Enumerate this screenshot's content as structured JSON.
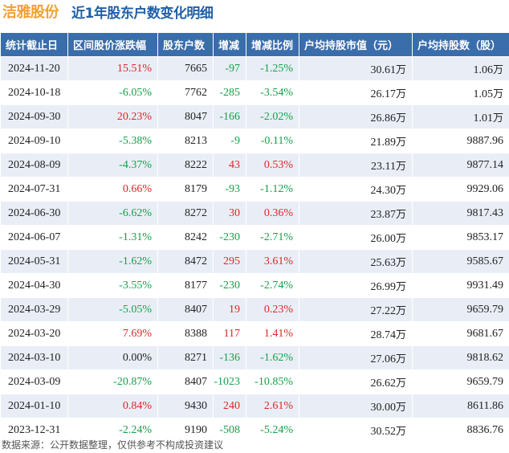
{
  "header": {
    "company": "洁雅股份",
    "subtitle": "近1年股东户数变化明细"
  },
  "table": {
    "columns": [
      "统计截止日",
      "区间股价涨跌幅",
      "股东户数",
      "增减",
      "增减比例",
      "户均持股市值（元）",
      "户均持股数（股）"
    ],
    "rows": [
      {
        "date": "2024-11-20",
        "price_change": "15.51%",
        "holders": "7665",
        "change": "-97",
        "change_ratio": "-1.25%",
        "avg_value": "30.61",
        "avg_value_unit": "万",
        "avg_shares": "1.06",
        "avg_shares_unit": "万",
        "pc_dir": "up",
        "ch_dir": "down"
      },
      {
        "date": "2024-10-18",
        "price_change": "-6.05%",
        "holders": "7762",
        "change": "-285",
        "change_ratio": "-3.54%",
        "avg_value": "26.17",
        "avg_value_unit": "万",
        "avg_shares": "1.05",
        "avg_shares_unit": "万",
        "pc_dir": "down",
        "ch_dir": "down"
      },
      {
        "date": "2024-09-30",
        "price_change": "20.23%",
        "holders": "8047",
        "change": "-166",
        "change_ratio": "-2.02%",
        "avg_value": "26.86",
        "avg_value_unit": "万",
        "avg_shares": "1.01",
        "avg_shares_unit": "万",
        "pc_dir": "up",
        "ch_dir": "down"
      },
      {
        "date": "2024-09-10",
        "price_change": "-5.38%",
        "holders": "8213",
        "change": "-9",
        "change_ratio": "-0.11%",
        "avg_value": "21.89",
        "avg_value_unit": "万",
        "avg_shares": "9887.96",
        "avg_shares_unit": "",
        "pc_dir": "down",
        "ch_dir": "down"
      },
      {
        "date": "2024-08-09",
        "price_change": "-4.37%",
        "holders": "8222",
        "change": "43",
        "change_ratio": "0.53%",
        "avg_value": "23.11",
        "avg_value_unit": "万",
        "avg_shares": "9877.14",
        "avg_shares_unit": "",
        "pc_dir": "down",
        "ch_dir": "up"
      },
      {
        "date": "2024-07-31",
        "price_change": "0.66%",
        "holders": "8179",
        "change": "-93",
        "change_ratio": "-1.12%",
        "avg_value": "24.30",
        "avg_value_unit": "万",
        "avg_shares": "9929.06",
        "avg_shares_unit": "",
        "pc_dir": "up",
        "ch_dir": "down"
      },
      {
        "date": "2024-06-30",
        "price_change": "-6.62%",
        "holders": "8272",
        "change": "30",
        "change_ratio": "0.36%",
        "avg_value": "23.87",
        "avg_value_unit": "万",
        "avg_shares": "9817.43",
        "avg_shares_unit": "",
        "pc_dir": "down",
        "ch_dir": "up"
      },
      {
        "date": "2024-06-07",
        "price_change": "-1.31%",
        "holders": "8242",
        "change": "-230",
        "change_ratio": "-2.71%",
        "avg_value": "26.00",
        "avg_value_unit": "万",
        "avg_shares": "9853.17",
        "avg_shares_unit": "",
        "pc_dir": "down",
        "ch_dir": "down"
      },
      {
        "date": "2024-05-31",
        "price_change": "-1.62%",
        "holders": "8472",
        "change": "295",
        "change_ratio": "3.61%",
        "avg_value": "25.63",
        "avg_value_unit": "万",
        "avg_shares": "9585.67",
        "avg_shares_unit": "",
        "pc_dir": "down",
        "ch_dir": "up"
      },
      {
        "date": "2024-04-30",
        "price_change": "-3.55%",
        "holders": "8177",
        "change": "-230",
        "change_ratio": "-2.74%",
        "avg_value": "26.99",
        "avg_value_unit": "万",
        "avg_shares": "9931.49",
        "avg_shares_unit": "",
        "pc_dir": "down",
        "ch_dir": "down"
      },
      {
        "date": "2024-03-29",
        "price_change": "-5.05%",
        "holders": "8407",
        "change": "19",
        "change_ratio": "0.23%",
        "avg_value": "27.22",
        "avg_value_unit": "万",
        "avg_shares": "9659.79",
        "avg_shares_unit": "",
        "pc_dir": "down",
        "ch_dir": "up"
      },
      {
        "date": "2024-03-20",
        "price_change": "7.69%",
        "holders": "8388",
        "change": "117",
        "change_ratio": "1.41%",
        "avg_value": "28.74",
        "avg_value_unit": "万",
        "avg_shares": "9681.67",
        "avg_shares_unit": "",
        "pc_dir": "up",
        "ch_dir": "up"
      },
      {
        "date": "2024-03-10",
        "price_change": "0.00%",
        "holders": "8271",
        "change": "-136",
        "change_ratio": "-1.62%",
        "avg_value": "27.06",
        "avg_value_unit": "万",
        "avg_shares": "9818.62",
        "avg_shares_unit": "",
        "pc_dir": "flat",
        "ch_dir": "down"
      },
      {
        "date": "2024-03-09",
        "price_change": "-20.87%",
        "holders": "8407",
        "change": "-1023",
        "change_ratio": "-10.85%",
        "avg_value": "26.62",
        "avg_value_unit": "万",
        "avg_shares": "9659.79",
        "avg_shares_unit": "",
        "pc_dir": "down",
        "ch_dir": "down"
      },
      {
        "date": "2024-01-10",
        "price_change": "0.84%",
        "holders": "9430",
        "change": "240",
        "change_ratio": "2.61%",
        "avg_value": "30.00",
        "avg_value_unit": "万",
        "avg_shares": "8611.86",
        "avg_shares_unit": "",
        "pc_dir": "up",
        "ch_dir": "up"
      },
      {
        "date": "2023-12-31",
        "price_change": "-2.24%",
        "holders": "9190",
        "change": "-508",
        "change_ratio": "-5.24%",
        "avg_value": "30.52",
        "avg_value_unit": "万",
        "avg_shares": "8836.76",
        "avg_shares_unit": "",
        "pc_dir": "down",
        "ch_dir": "down"
      }
    ]
  },
  "footer": {
    "source": "数据来源：公开数据整理，仅供参考不构成投资建议"
  },
  "colors": {
    "header_bg": "#3a6dab",
    "row_alt_bg": "#e9eef6",
    "up": "#e02525",
    "down": "#14a14a",
    "company": "#f0a22e",
    "subtitle": "#1f5fa8"
  }
}
